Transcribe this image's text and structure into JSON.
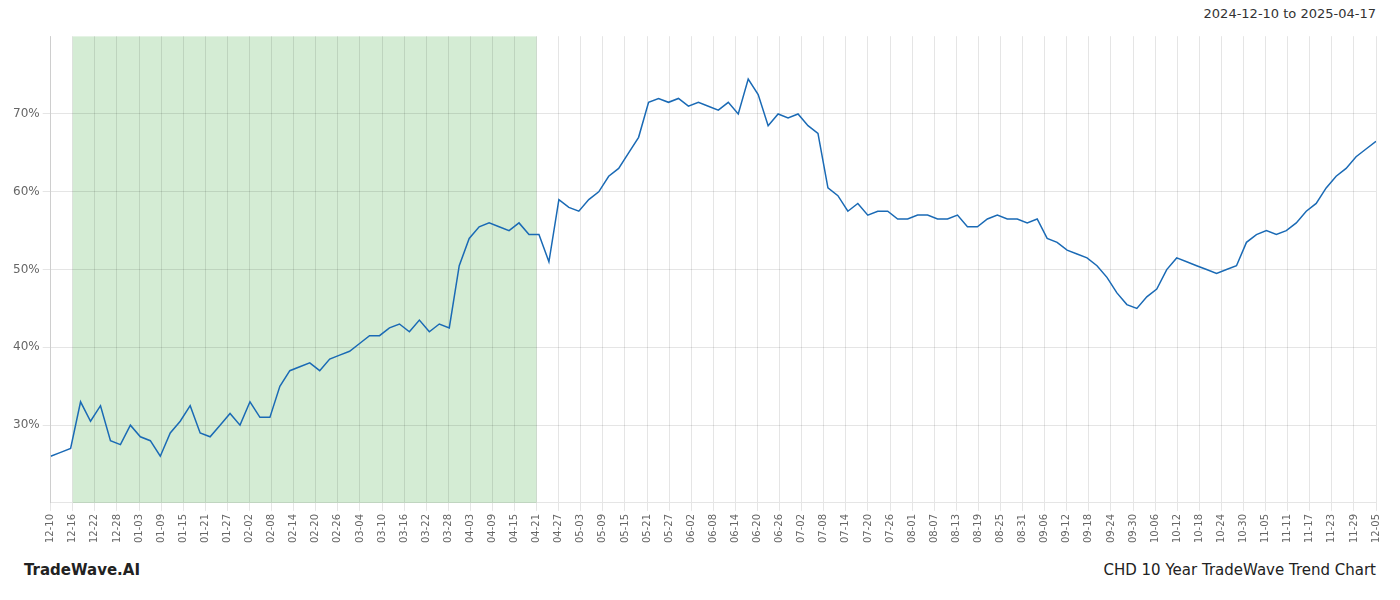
{
  "chart_data": {
    "type": "line",
    "title": "CHD 10 Year TradeWave Trend Chart",
    "subtitle": "2024-12-10 to 2025-04-17",
    "annotations": [
      "TradeWave.AI"
    ],
    "color": "#1a6ab5",
    "shaded_x": [
      1,
      22
    ],
    "shaded_color": "#d4ecd4",
    "grid": true,
    "xlim": [
      0,
      60
    ],
    "xticks": [
      {
        "value": 0,
        "label": "12-10"
      },
      {
        "value": 1,
        "label": "12-16"
      },
      {
        "value": 2,
        "label": "12-22"
      },
      {
        "value": 3,
        "label": "12-28"
      },
      {
        "value": 4,
        "label": "01-03"
      },
      {
        "value": 5,
        "label": "01-09"
      },
      {
        "value": 6,
        "label": "01-15"
      },
      {
        "value": 7,
        "label": "01-21"
      },
      {
        "value": 8,
        "label": "01-27"
      },
      {
        "value": 9,
        "label": "02-02"
      },
      {
        "value": 10,
        "label": "02-08"
      },
      {
        "value": 11,
        "label": "02-14"
      },
      {
        "value": 12,
        "label": "02-20"
      },
      {
        "value": 13,
        "label": "02-26"
      },
      {
        "value": 14,
        "label": "03-04"
      },
      {
        "value": 15,
        "label": "03-10"
      },
      {
        "value": 16,
        "label": "03-16"
      },
      {
        "value": 17,
        "label": "03-22"
      },
      {
        "value": 18,
        "label": "03-28"
      },
      {
        "value": 19,
        "label": "04-03"
      },
      {
        "value": 20,
        "label": "04-09"
      },
      {
        "value": 21,
        "label": "04-15"
      },
      {
        "value": 22,
        "label": "04-21"
      },
      {
        "value": 23,
        "label": "04-27"
      },
      {
        "value": 24,
        "label": "05-03"
      },
      {
        "value": 25,
        "label": "05-09"
      },
      {
        "value": 26,
        "label": "05-15"
      },
      {
        "value": 27,
        "label": "05-21"
      },
      {
        "value": 28,
        "label": "05-27"
      },
      {
        "value": 29,
        "label": "06-02"
      },
      {
        "value": 30,
        "label": "06-08"
      },
      {
        "value": 31,
        "label": "06-14"
      },
      {
        "value": 32,
        "label": "06-20"
      },
      {
        "value": 33,
        "label": "06-26"
      },
      {
        "value": 34,
        "label": "07-02"
      },
      {
        "value": 35,
        "label": "07-08"
      },
      {
        "value": 36,
        "label": "07-14"
      },
      {
        "value": 37,
        "label": "07-20"
      },
      {
        "value": 38,
        "label": "07-26"
      },
      {
        "value": 39,
        "label": "08-01"
      },
      {
        "value": 40,
        "label": "08-07"
      },
      {
        "value": 41,
        "label": "08-13"
      },
      {
        "value": 42,
        "label": "08-19"
      },
      {
        "value": 43,
        "label": "08-25"
      },
      {
        "value": 44,
        "label": "08-31"
      },
      {
        "value": 45,
        "label": "09-06"
      },
      {
        "value": 46,
        "label": "09-12"
      },
      {
        "value": 47,
        "label": "09-18"
      },
      {
        "value": 48,
        "label": "09-24"
      },
      {
        "value": 49,
        "label": "09-30"
      },
      {
        "value": 50,
        "label": "10-06"
      },
      {
        "value": 51,
        "label": "10-12"
      },
      {
        "value": 52,
        "label": "10-18"
      },
      {
        "value": 53,
        "label": "10-24"
      },
      {
        "value": 54,
        "label": "10-30"
      },
      {
        "value": 55,
        "label": "11-05"
      },
      {
        "value": 56,
        "label": "11-11"
      },
      {
        "value": 57,
        "label": "11-17"
      },
      {
        "value": 58,
        "label": "11-23"
      },
      {
        "value": 59,
        "label": "11-29"
      },
      {
        "value": 60,
        "label": "12-05"
      }
    ],
    "ylim": [
      20,
      80
    ],
    "yticks": [
      {
        "value": 30,
        "label": "30%"
      },
      {
        "value": 40,
        "label": "40%"
      },
      {
        "value": 50,
        "label": "50%"
      },
      {
        "value": 60,
        "label": "60%"
      },
      {
        "value": 70,
        "label": "70%"
      }
    ],
    "x": [
      0,
      0.451128,
      0.902256,
      1.353383,
      1.804511,
      2.255639,
      2.706767,
      3.157895,
      3.609023,
      4.06015,
      4.511278,
      4.962406,
      5.413534,
      5.864662,
      6.315789,
      6.766917,
      7.218045,
      7.669173,
      8.120301,
      8.571429,
      9.022556,
      9.473684,
      9.924812,
      10.37594,
      10.827068,
      11.278195,
      11.729323,
      12.180451,
      12.631579,
      13.082707,
      13.533835,
      13.984962,
      14.43609,
      14.887218,
      15.338346,
      15.789474,
      16.240602,
      16.691729,
      17.142857,
      17.593985,
      18.045113,
      18.496241,
      18.947368,
      19.398496,
      19.849624,
      20.300752,
      20.75188,
      21.203008,
      21.654135,
      22.105263,
      22.556391,
      23.007519,
      23.458647,
      23.909774,
      24.360902,
      24.81203,
      25.263158,
      25.714286,
      26.165414,
      26.616541,
      27.067669,
      27.518797,
      27.969925,
      28.421053,
      28.87218,
      29.323308,
      29.774436,
      30.225564,
      30.676692,
      31.12782,
      31.578947,
      32.030075,
      32.481203,
      32.932331,
      33.383459,
      33.834586,
      34.285714,
      34.736842,
      35.18797,
      35.639098,
      36.090226,
      36.541353,
      36.992481,
      37.443609,
      37.894737,
      38.345865,
      38.796992,
      39.24812,
      39.699248,
      40.150376,
      40.601504,
      41.052632,
      41.503759,
      41.954887,
      42.406015,
      42.857143,
      43.308271,
      43.759398,
      44.210526,
      44.661654,
      45.112782,
      45.56391,
      46.015038,
      46.466165,
      46.917293,
      47.368421,
      47.819549,
      48.270677,
      48.721805,
      49.172932,
      49.62406,
      50.075188,
      50.526316,
      50.977444,
      51.428571,
      51.879699,
      52.330827,
      52.781955,
      53.233083,
      53.684211,
      54.135338,
      54.586466,
      55.037594,
      55.488722,
      55.93985,
      56.390977,
      56.842105,
      57.293233,
      57.744361,
      58.195489,
      58.646617,
      59.097744,
      59.548872,
      60
    ],
    "values": [
      26.0,
      26.5,
      27.0,
      33.0,
      30.5,
      32.5,
      28.0,
      27.5,
      30.0,
      28.5,
      28.0,
      26.0,
      29.0,
      30.5,
      32.5,
      29.0,
      28.5,
      30.0,
      31.5,
      30.0,
      33.0,
      31.0,
      31.0,
      35.0,
      37.0,
      37.5,
      38.0,
      37.0,
      38.5,
      39.0,
      39.5,
      40.5,
      41.5,
      41.5,
      42.5,
      43.0,
      42.0,
      43.5,
      42.0,
      43.0,
      42.5,
      50.5,
      54.0,
      55.5,
      56.0,
      55.5,
      55.0,
      56.0,
      54.5,
      54.5,
      51.0,
      59.0,
      58.0,
      57.5,
      59.0,
      60.0,
      62.0,
      63.0,
      65.0,
      67.0,
      71.5,
      72.0,
      71.5,
      72.0,
      71.0,
      71.5,
      71.0,
      70.5,
      71.5,
      70.0,
      74.5,
      72.5,
      68.5,
      70.0,
      69.5,
      70.0,
      68.5,
      67.5,
      60.5,
      59.5,
      57.5,
      58.5,
      57.0,
      57.5,
      57.5,
      56.5,
      56.5,
      57.0,
      57.0,
      56.5,
      56.5,
      57.0,
      55.5,
      55.5,
      56.5,
      57.0,
      56.5,
      56.5,
      56.0,
      56.5,
      54.0,
      53.5,
      52.5,
      52.0,
      51.5,
      50.5,
      49.0,
      47.0,
      45.5,
      45.0,
      46.5,
      47.5,
      50.0,
      51.5,
      51.0,
      50.5,
      50.0,
      49.5,
      50.0,
      50.5,
      53.5,
      54.5,
      55.0,
      54.5,
      55.0,
      56.0,
      57.5,
      58.5,
      60.5,
      62.0,
      63.0,
      64.5,
      65.5,
      66.5
    ]
  }
}
